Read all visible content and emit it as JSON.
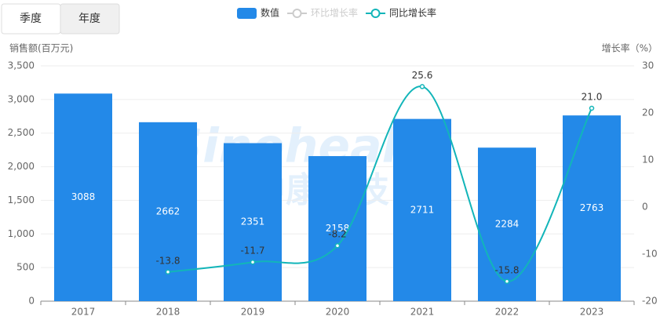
{
  "tabs": [
    "季度",
    "年度"
  ],
  "chart_data": {
    "type": "bar-line",
    "watermark": [
      "Sinohealth",
      "中康科技"
    ],
    "y_label": "销售额(百万元)",
    "y2_label": "增长率（%）",
    "categories": [
      "2017",
      "2018",
      "2019",
      "2020",
      "2021",
      "2022",
      "2023"
    ],
    "series": [
      {
        "name": "数值",
        "type": "bar",
        "color": "#2389e8",
        "values": [
          3088,
          2662,
          2351,
          2158,
          2711,
          2284,
          2763
        ]
      },
      {
        "name": "环比增长率",
        "type": "line",
        "axis": "y2",
        "color": "#cccccc",
        "values": [
          null,
          null,
          null,
          null,
          null,
          null,
          null
        ]
      },
      {
        "name": "同比增长率",
        "type": "line",
        "axis": "y2",
        "color": "#12b5b9",
        "values": [
          null,
          -13.8,
          -11.7,
          -8.2,
          25.6,
          -15.8,
          21.0
        ],
        "value_labels": [
          null,
          "-13.8",
          "-11.7",
          "-8.2",
          "25.6",
          "-15.8",
          "21.0"
        ]
      }
    ],
    "ylim": [
      0,
      3500
    ],
    "yticks": [
      0,
      500,
      {
        "value": 1000,
        "label": "1,000"
      },
      {
        "value": 1500,
        "label": "1,500"
      },
      {
        "value": 2000,
        "label": "2,000"
      },
      {
        "value": 2500,
        "label": "2,500"
      },
      {
        "value": 3000,
        "label": "3,000"
      },
      {
        "value": 3500,
        "label": "3,500"
      }
    ],
    "y2lim": [
      -20,
      30
    ],
    "y2ticks": [
      -20,
      -10,
      0,
      10,
      20,
      30
    ]
  }
}
